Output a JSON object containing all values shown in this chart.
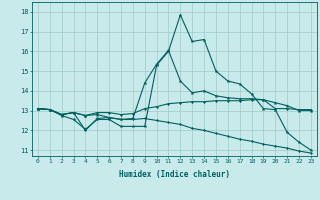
{
  "xlabel": "Humidex (Indice chaleur)",
  "bg_color": "#c8eaea",
  "grid_color": "#a0c8c8",
  "line_color": "#006060",
  "xlim": [
    -0.5,
    23.5
  ],
  "ylim": [
    10.7,
    18.5
  ],
  "xticks": [
    0,
    1,
    2,
    3,
    4,
    5,
    6,
    7,
    8,
    9,
    10,
    11,
    12,
    13,
    14,
    15,
    16,
    17,
    18,
    19,
    20,
    21,
    22,
    23
  ],
  "yticks": [
    11,
    12,
    13,
    14,
    15,
    16,
    17,
    18
  ],
  "line1_x": [
    0,
    1,
    2,
    3,
    4,
    5,
    6,
    7,
    8,
    9,
    10,
    11,
    12,
    13,
    14,
    15,
    16,
    17,
    18,
    19,
    20,
    21,
    22,
    23
  ],
  "line1_y": [
    13.1,
    13.05,
    12.75,
    12.55,
    12.05,
    12.55,
    12.55,
    12.2,
    12.2,
    12.2,
    15.3,
    16.0,
    17.85,
    16.5,
    16.6,
    15.0,
    14.5,
    14.35,
    13.85,
    13.1,
    13.05,
    11.9,
    11.4,
    11.0
  ],
  "line2_x": [
    0,
    1,
    2,
    3,
    4,
    5,
    6,
    7,
    8,
    9,
    10,
    11,
    12,
    13,
    14,
    15,
    16,
    17,
    18,
    19,
    20,
    21,
    22,
    23
  ],
  "line2_y": [
    13.1,
    13.05,
    12.8,
    12.9,
    12.75,
    12.9,
    12.9,
    12.8,
    12.85,
    13.1,
    13.2,
    13.35,
    13.4,
    13.45,
    13.45,
    13.5,
    13.5,
    13.5,
    13.55,
    13.55,
    13.1,
    13.1,
    13.05,
    13.05
  ],
  "line3_x": [
    0,
    1,
    2,
    3,
    4,
    5,
    6,
    7,
    8,
    9,
    10,
    11,
    12,
    13,
    14,
    15,
    16,
    17,
    18,
    19,
    20,
    21,
    22,
    23
  ],
  "line3_y": [
    13.1,
    13.05,
    12.8,
    12.9,
    12.0,
    12.6,
    12.65,
    12.55,
    12.55,
    12.6,
    12.5,
    12.4,
    12.3,
    12.1,
    12.0,
    11.85,
    11.7,
    11.55,
    11.45,
    11.3,
    11.2,
    11.1,
    10.95,
    10.85
  ],
  "line4_x": [
    0,
    1,
    2,
    3,
    4,
    5,
    6,
    7,
    8,
    9,
    10,
    11,
    12,
    13,
    14,
    15,
    16,
    17,
    18,
    19,
    20,
    21,
    22,
    23
  ],
  "line4_y": [
    13.1,
    13.05,
    12.8,
    12.9,
    12.75,
    12.8,
    12.65,
    12.55,
    12.6,
    14.4,
    15.35,
    16.05,
    14.5,
    13.9,
    14.0,
    13.75,
    13.65,
    13.6,
    13.6,
    13.55,
    13.4,
    13.25,
    13.0,
    13.0
  ]
}
